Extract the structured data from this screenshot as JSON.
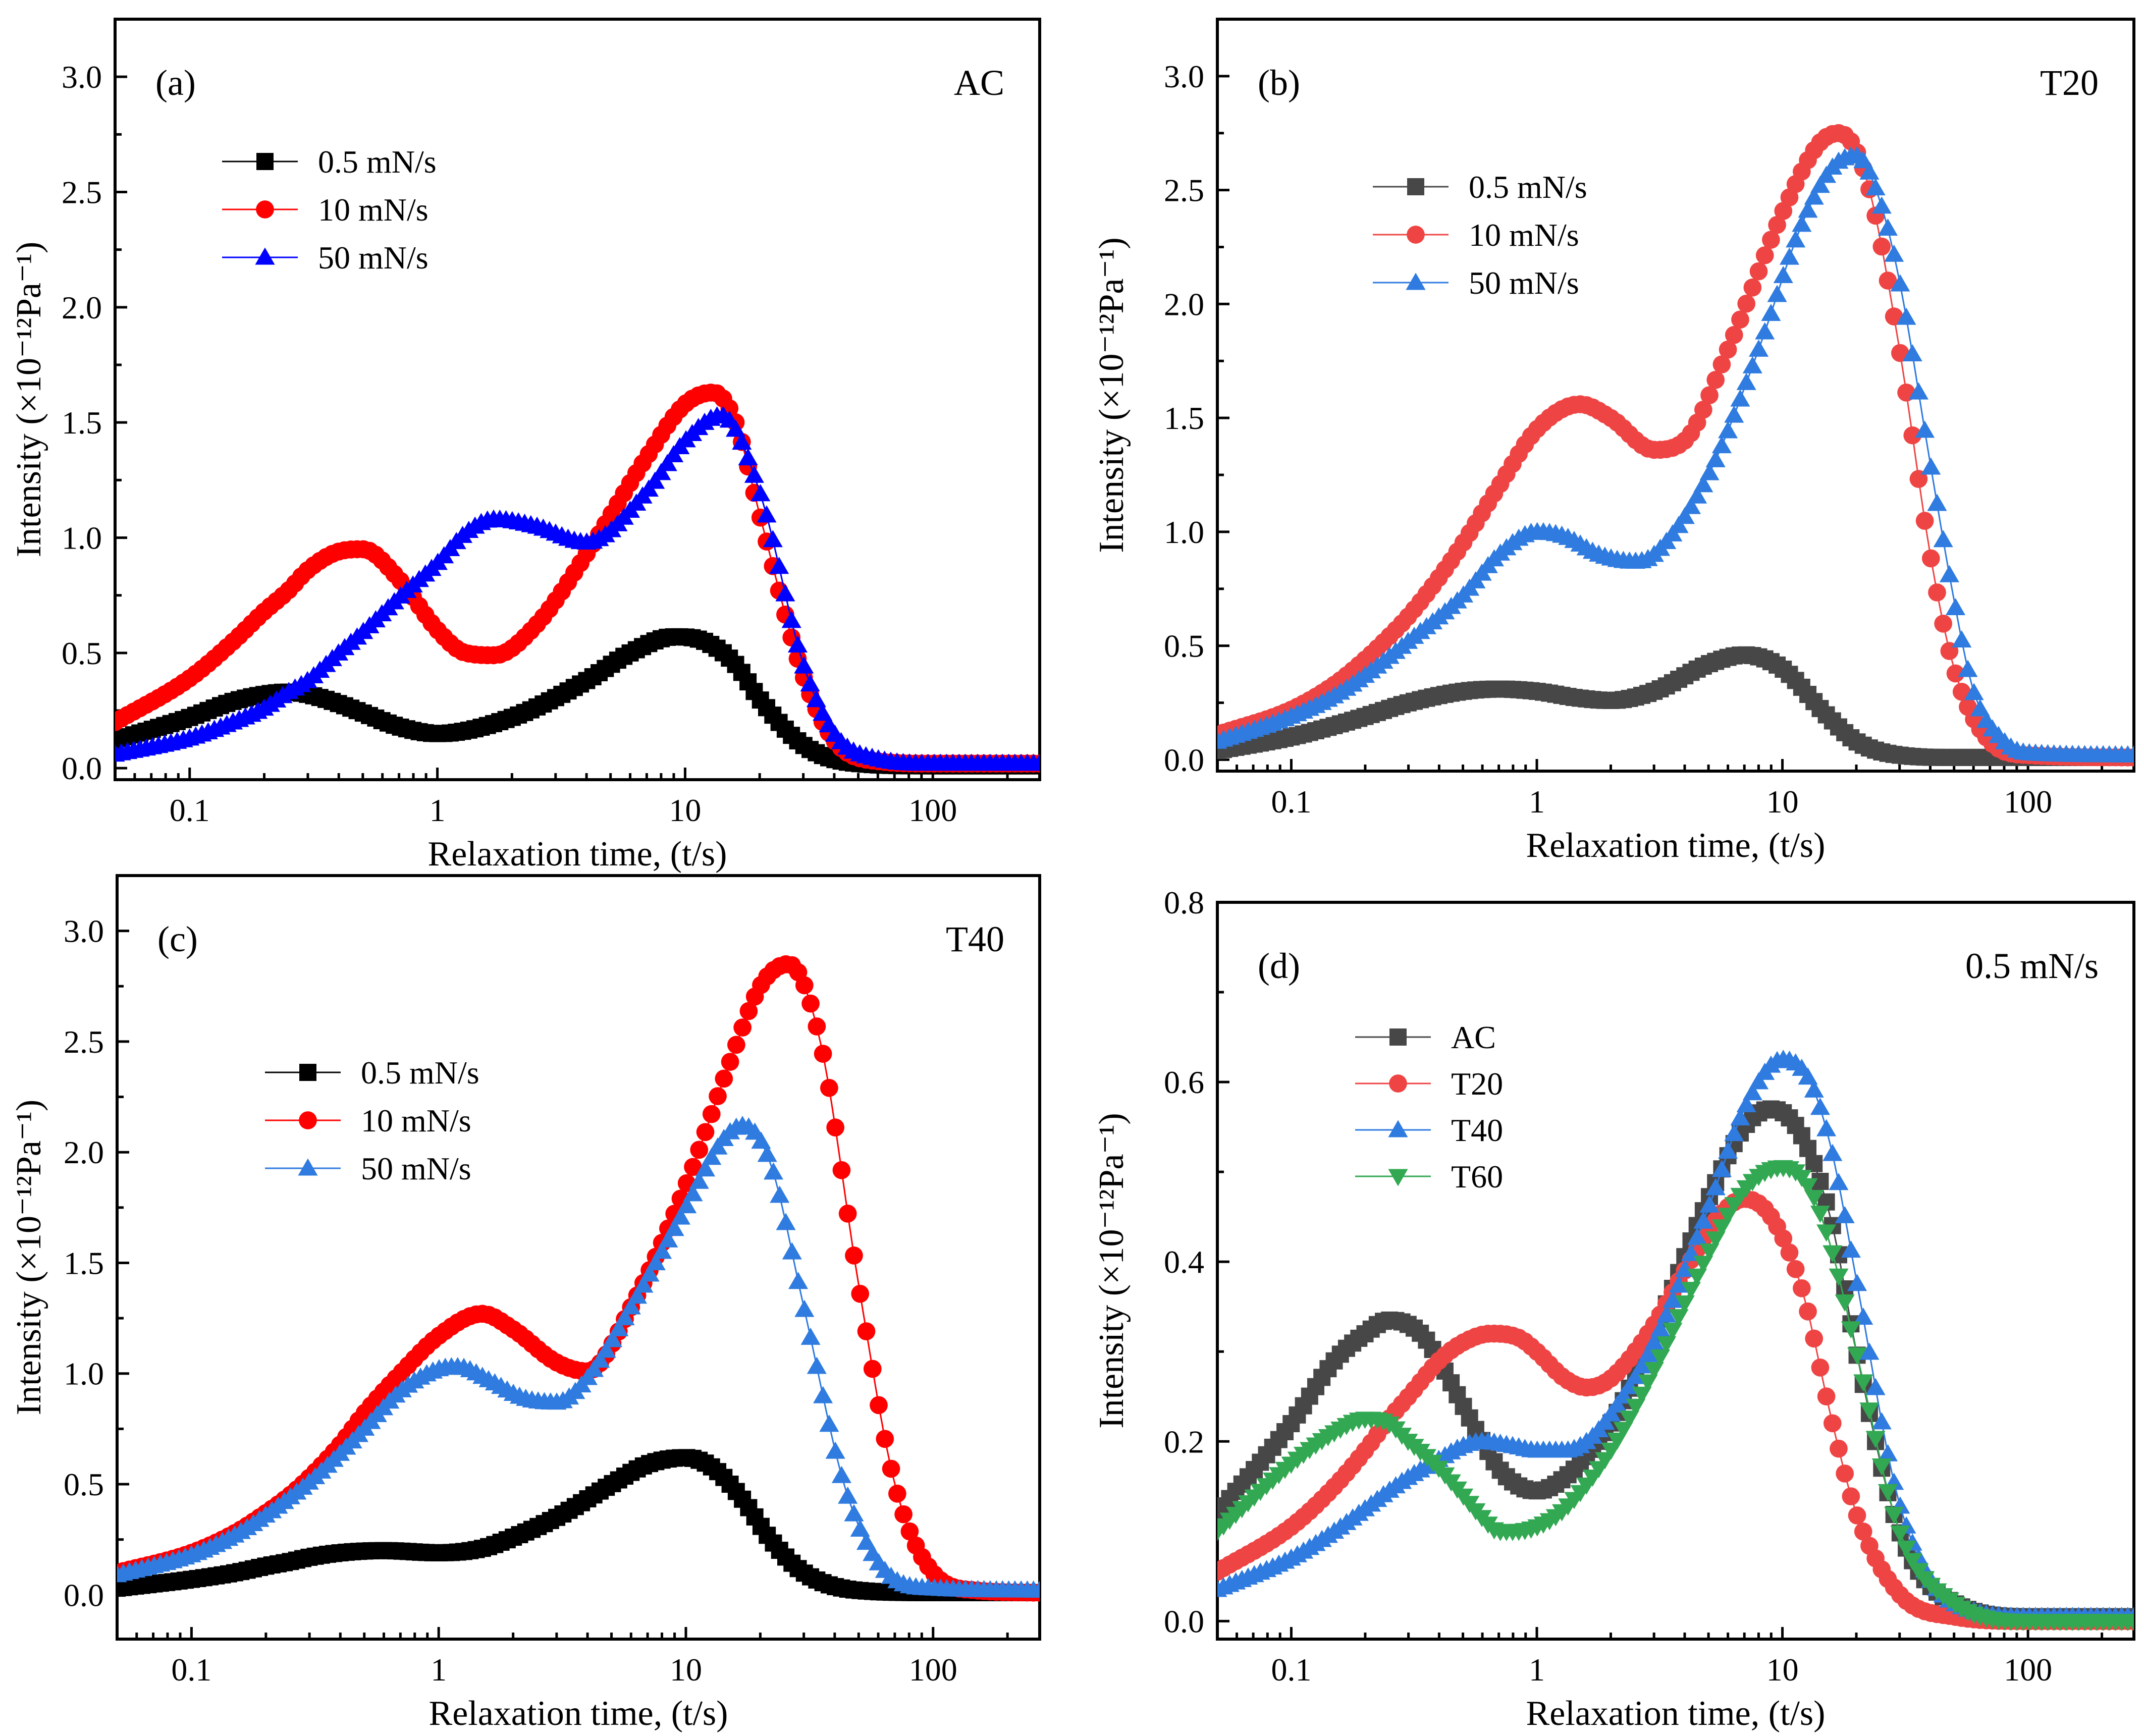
{
  "colors": {
    "black": "#000000",
    "red": "#ff0000",
    "blue": "#0000ff",
    "dark_gray": "#474747",
    "light_red": "#ef4444",
    "light_blue": "#2f7be0",
    "green": "#32a852"
  },
  "chart_data": [
    {
      "type": "line",
      "panel_label": "(a)",
      "title": "AC",
      "xlabel": "Relaxation time, (t/s)",
      "ylabel": "Intensity (×10⁻¹²Pa⁻¹)",
      "xscale": "log",
      "xlim": [
        0.05,
        270
      ],
      "ylim": [
        -0.05,
        3.25
      ],
      "xticks": [
        {
          "v": 0.1,
          "label": "0.1"
        },
        {
          "v": 1,
          "label": "1"
        },
        {
          "v": 10,
          "label": "10"
        },
        {
          "v": 100,
          "label": "100"
        }
      ],
      "yticks": [
        {
          "v": 0,
          "label": "0.0"
        },
        {
          "v": 0.5,
          "label": "0.5"
        },
        {
          "v": 1,
          "label": "1.0"
        },
        {
          "v": 1.5,
          "label": "1.5"
        },
        {
          "v": 2,
          "label": "2.0"
        },
        {
          "v": 2.5,
          "label": "2.5"
        },
        {
          "v": 3,
          "label": "3.0"
        }
      ],
      "legend_position": "top-left",
      "series": [
        {
          "name": "0.5 mN/s",
          "color": "#000000",
          "marker": "square",
          "x": [
            0.05,
            0.1,
            0.15,
            0.2,
            0.25,
            0.3,
            0.4,
            0.5,
            0.7,
            1,
            2,
            4,
            6,
            9,
            12,
            16,
            20,
            30,
            50,
            100,
            270
          ],
          "y": [
            0.12,
            0.22,
            0.29,
            0.32,
            0.33,
            0.32,
            0.28,
            0.24,
            0.18,
            0.15,
            0.22,
            0.38,
            0.5,
            0.57,
            0.55,
            0.45,
            0.3,
            0.1,
            0.02,
            0.01,
            0.01
          ]
        },
        {
          "name": "10 mN/s",
          "color": "#ff0000",
          "marker": "circle",
          "x": [
            0.05,
            0.1,
            0.15,
            0.2,
            0.25,
            0.3,
            0.4,
            0.5,
            0.7,
            1,
            1.3,
            1.7,
            2.5,
            4,
            7,
            10,
            13,
            16,
            20,
            30,
            40,
            60,
            100,
            270
          ],
          "y": [
            0.2,
            0.39,
            0.55,
            0.68,
            0.77,
            0.86,
            0.94,
            0.95,
            0.82,
            0.6,
            0.5,
            0.49,
            0.62,
            0.93,
            1.35,
            1.58,
            1.63,
            1.5,
            1.1,
            0.4,
            0.12,
            0.03,
            0.02,
            0.02
          ]
        },
        {
          "name": "50 mN/s",
          "color": "#0000ff",
          "marker": "triangle",
          "x": [
            0.05,
            0.1,
            0.15,
            0.2,
            0.25,
            0.3,
            0.4,
            0.5,
            0.7,
            1,
            1.3,
            1.7,
            2.5,
            4,
            7,
            10,
            14,
            20,
            30,
            40,
            60,
            100,
            270
          ],
          "y": [
            0.06,
            0.13,
            0.2,
            0.26,
            0.33,
            0.38,
            0.5,
            0.59,
            0.74,
            0.89,
            1.02,
            1.08,
            1.05,
            0.98,
            1.2,
            1.42,
            1.53,
            1.2,
            0.45,
            0.15,
            0.04,
            0.02,
            0.02
          ]
        }
      ]
    },
    {
      "type": "line",
      "panel_label": "(b)",
      "title": "T20",
      "xlabel": "Relaxation time, (t/s)",
      "ylabel": "Intensity (×10⁻¹²Pa⁻¹)",
      "xscale": "log",
      "xlim": [
        0.05,
        270
      ],
      "ylim": [
        -0.05,
        3.25
      ],
      "xticks": [
        {
          "v": 0.1,
          "label": "0.1"
        },
        {
          "v": 1,
          "label": "1"
        },
        {
          "v": 10,
          "label": "10"
        },
        {
          "v": 100,
          "label": "100"
        }
      ],
      "yticks": [
        {
          "v": 0,
          "label": "0.0"
        },
        {
          "v": 0.5,
          "label": "0.5"
        },
        {
          "v": 1,
          "label": "1.0"
        },
        {
          "v": 1.5,
          "label": "1.5"
        },
        {
          "v": 2,
          "label": "2.0"
        },
        {
          "v": 2.5,
          "label": "2.5"
        },
        {
          "v": 3,
          "label": "3.0"
        }
      ],
      "legend_position": "top-left",
      "series": [
        {
          "name": "0.5 mN/s",
          "color": "#474747",
          "marker": "square",
          "x": [
            0.05,
            0.1,
            0.15,
            0.2,
            0.3,
            0.5,
            0.7,
            1,
            1.5,
            2,
            3,
            5,
            7,
            10,
            15,
            20,
            30,
            50,
            100,
            270
          ],
          "y": [
            0.04,
            0.1,
            0.15,
            0.19,
            0.25,
            0.3,
            0.31,
            0.3,
            0.27,
            0.26,
            0.3,
            0.42,
            0.46,
            0.4,
            0.2,
            0.08,
            0.02,
            0.01,
            0.01,
            0.01
          ]
        },
        {
          "name": "10 mN/s",
          "color": "#ef4444",
          "marker": "circle",
          "x": [
            0.05,
            0.1,
            0.15,
            0.2,
            0.25,
            0.3,
            0.4,
            0.5,
            0.7,
            1,
            1.5,
            2,
            3,
            4,
            6,
            10,
            14,
            17,
            22,
            30,
            40,
            50,
            70,
            100,
            270
          ],
          "y": [
            0.11,
            0.22,
            0.33,
            0.44,
            0.54,
            0.63,
            0.8,
            0.95,
            1.2,
            1.45,
            1.56,
            1.5,
            1.36,
            1.4,
            1.8,
            2.4,
            2.7,
            2.75,
            2.55,
            1.8,
            0.9,
            0.4,
            0.08,
            0.02,
            0.01
          ]
        },
        {
          "name": "50 mN/s",
          "color": "#2f7be0",
          "marker": "triangle",
          "x": [
            0.05,
            0.1,
            0.15,
            0.2,
            0.3,
            0.5,
            0.7,
            1,
            1.3,
            1.8,
            2.5,
            3,
            5,
            8,
            12,
            16,
            20,
            25,
            30,
            40,
            50,
            60,
            80,
            100,
            270
          ],
          "y": [
            0.08,
            0.19,
            0.28,
            0.37,
            0.52,
            0.72,
            0.9,
            1.0,
            0.98,
            0.9,
            0.87,
            0.9,
            1.25,
            1.8,
            2.35,
            2.6,
            2.65,
            2.45,
            2.1,
            1.3,
            0.7,
            0.3,
            0.08,
            0.03,
            0.02
          ]
        }
      ]
    },
    {
      "type": "line",
      "panel_label": "(c)",
      "title": "T40",
      "xlabel": "Relaxation time, (t/s)",
      "ylabel": "Intensity (×10⁻¹²Pa⁻¹)",
      "xscale": "log",
      "xlim": [
        0.05,
        270
      ],
      "ylim": [
        -0.2,
        3.25
      ],
      "xticks": [
        {
          "v": 0.1,
          "label": "0.1"
        },
        {
          "v": 1,
          "label": "1"
        },
        {
          "v": 10,
          "label": "10"
        },
        {
          "v": 100,
          "label": "100"
        }
      ],
      "yticks": [
        {
          "v": 0,
          "label": "0.0"
        },
        {
          "v": 0.5,
          "label": "0.5"
        },
        {
          "v": 1,
          "label": "1.0"
        },
        {
          "v": 1.5,
          "label": "1.5"
        },
        {
          "v": 2,
          "label": "2.0"
        },
        {
          "v": 2.5,
          "label": "2.5"
        },
        {
          "v": 3,
          "label": "3.0"
        }
      ],
      "legend_position": "top-left",
      "series": [
        {
          "name": "0.5 mN/s",
          "color": "#000000",
          "marker": "square",
          "x": [
            0.05,
            0.1,
            0.15,
            0.2,
            0.25,
            0.3,
            0.4,
            0.6,
            1,
            1.5,
            2,
            3,
            5,
            7,
            10,
            13,
            17,
            22,
            30,
            50,
            100,
            270
          ],
          "y": [
            0.03,
            0.07,
            0.1,
            0.13,
            0.15,
            0.17,
            0.19,
            0.2,
            0.19,
            0.21,
            0.26,
            0.35,
            0.5,
            0.59,
            0.62,
            0.57,
            0.43,
            0.25,
            0.1,
            0.02,
            0.01,
            0.01
          ]
        },
        {
          "name": "10 mN/s",
          "color": "#ff0000",
          "marker": "circle",
          "x": [
            0.05,
            0.1,
            0.15,
            0.2,
            0.25,
            0.3,
            0.4,
            0.5,
            0.7,
            1,
            1.5,
            2,
            3,
            4,
            6,
            10,
            15,
            20,
            26,
            35,
            50,
            70,
            100,
            150,
            270
          ],
          "y": [
            0.1,
            0.19,
            0.28,
            0.37,
            0.45,
            0.53,
            0.68,
            0.82,
            1.0,
            1.17,
            1.27,
            1.2,
            1.05,
            1.01,
            1.3,
            1.85,
            2.4,
            2.75,
            2.85,
            2.5,
            1.4,
            0.5,
            0.1,
            0.02,
            0.01
          ]
        },
        {
          "name": "50 mN/s",
          "color": "#2f7be0",
          "marker": "triangle",
          "x": [
            0.05,
            0.1,
            0.15,
            0.2,
            0.25,
            0.3,
            0.4,
            0.5,
            0.7,
            1,
            1.2,
            1.6,
            2.2,
            3,
            4,
            6,
            10,
            14,
            17,
            22,
            30,
            45,
            70,
            100,
            270
          ],
          "y": [
            0.09,
            0.18,
            0.27,
            0.36,
            0.44,
            0.51,
            0.64,
            0.75,
            0.92,
            1.02,
            1.03,
            0.97,
            0.89,
            0.87,
            0.98,
            1.3,
            1.75,
            2.05,
            2.12,
            1.95,
            1.3,
            0.45,
            0.07,
            0.03,
            0.02
          ]
        }
      ]
    },
    {
      "type": "line",
      "panel_label": "(d)",
      "title": "0.5 mN/s",
      "xlabel": "Relaxation time, (t/s)",
      "ylabel": "Intensity (×10⁻¹²Pa⁻¹)",
      "xscale": "log",
      "xlim": [
        0.05,
        270
      ],
      "ylim": [
        -0.02,
        0.8
      ],
      "xticks": [
        {
          "v": 0.1,
          "label": "0.1"
        },
        {
          "v": 1,
          "label": "1"
        },
        {
          "v": 10,
          "label": "10"
        },
        {
          "v": 100,
          "label": "100"
        }
      ],
      "yticks": [
        {
          "v": 0,
          "label": "0.0"
        },
        {
          "v": 0.2,
          "label": "0.2"
        },
        {
          "v": 0.4,
          "label": "0.4"
        },
        {
          "v": 0.6,
          "label": "0.6"
        },
        {
          "v": 0.8,
          "label": "0.8"
        }
      ],
      "legend_position": "top-left",
      "series": [
        {
          "name": "AC",
          "color": "#474747",
          "marker": "square",
          "x": [
            0.05,
            0.1,
            0.15,
            0.2,
            0.25,
            0.3,
            0.35,
            0.4,
            0.5,
            0.6,
            0.7,
            0.85,
            1,
            1.3,
            2,
            3,
            5,
            7,
            9,
            12,
            16,
            20,
            30,
            50,
            100,
            270
          ],
          "y": [
            0.12,
            0.22,
            0.29,
            0.32,
            0.335,
            0.33,
            0.315,
            0.29,
            0.24,
            0.2,
            0.17,
            0.15,
            0.145,
            0.16,
            0.22,
            0.32,
            0.47,
            0.55,
            0.57,
            0.54,
            0.44,
            0.3,
            0.1,
            0.02,
            0.005,
            0.005
          ]
        },
        {
          "name": "T20",
          "color": "#ef4444",
          "marker": "circle",
          "x": [
            0.05,
            0.1,
            0.15,
            0.2,
            0.25,
            0.3,
            0.4,
            0.5,
            0.65,
            0.85,
            1,
            1.3,
            1.6,
            2,
            3,
            4,
            5.5,
            7,
            9,
            12,
            16,
            20,
            30,
            50,
            100,
            270
          ],
          "y": [
            0.055,
            0.105,
            0.15,
            0.19,
            0.225,
            0.25,
            0.29,
            0.31,
            0.32,
            0.315,
            0.3,
            0.27,
            0.26,
            0.27,
            0.33,
            0.39,
            0.45,
            0.47,
            0.45,
            0.37,
            0.22,
            0.12,
            0.03,
            0.005,
            0.0,
            0.0
          ]
        },
        {
          "name": "T40",
          "color": "#2f7be0",
          "marker": "triangle",
          "x": [
            0.05,
            0.1,
            0.15,
            0.2,
            0.25,
            0.3,
            0.4,
            0.5,
            0.6,
            0.8,
            1,
            1.3,
            1.6,
            2,
            3,
            5,
            7,
            10,
            13,
            16,
            20,
            30,
            50,
            100,
            270
          ],
          "y": [
            0.035,
            0.07,
            0.1,
            0.125,
            0.145,
            0.16,
            0.18,
            0.195,
            0.2,
            0.195,
            0.19,
            0.19,
            0.2,
            0.23,
            0.31,
            0.46,
            0.57,
            0.625,
            0.6,
            0.52,
            0.38,
            0.13,
            0.02,
            0.005,
            0.005
          ]
        },
        {
          "name": "T60",
          "color": "#32a852",
          "marker": "triangle-down",
          "x": [
            0.05,
            0.1,
            0.15,
            0.2,
            0.25,
            0.3,
            0.35,
            0.4,
            0.5,
            0.6,
            0.7,
            0.8,
            1,
            1.3,
            2,
            3,
            5,
            7,
            10,
            13,
            16,
            20,
            30,
            50,
            100,
            270
          ],
          "y": [
            0.1,
            0.175,
            0.21,
            0.225,
            0.22,
            0.2,
            0.185,
            0.17,
            0.14,
            0.115,
            0.1,
            0.1,
            0.105,
            0.125,
            0.19,
            0.28,
            0.41,
            0.48,
            0.505,
            0.48,
            0.41,
            0.3,
            0.1,
            0.02,
            0.0,
            0.0
          ]
        }
      ]
    }
  ]
}
